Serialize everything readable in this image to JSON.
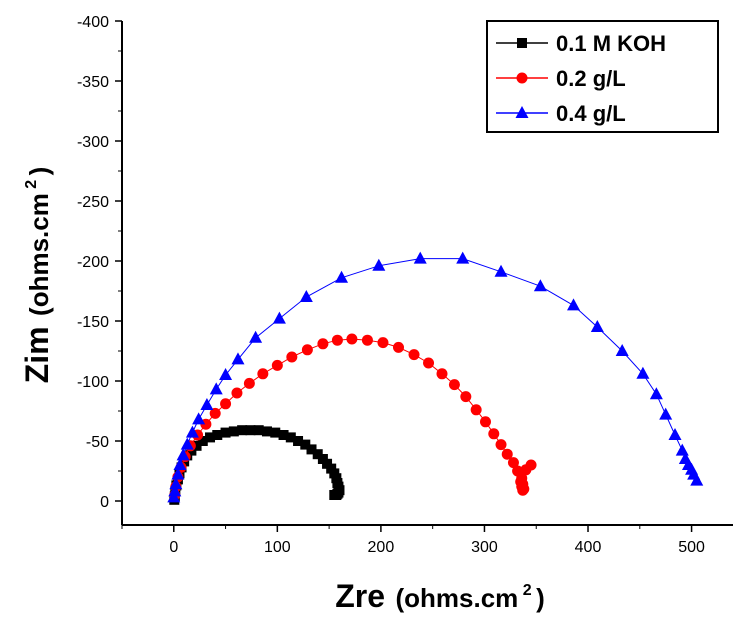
{
  "chart_data": {
    "type": "scatter",
    "xlabel_main": "Zre",
    "xlabel_unit": "(ohms.cm",
    "xlabel_sup": "2",
    "xlabel_close": ")",
    "ylabel_main": "Zim",
    "ylabel_unit": "(ohms.cm",
    "ylabel_sup": "2",
    "ylabel_close": ")",
    "xlim": [
      -50,
      540
    ],
    "ylim": [
      20,
      -400
    ],
    "x_ticks": [
      "0",
      "100",
      "200",
      "300",
      "400",
      "500"
    ],
    "x_tick_values": [
      0,
      100,
      200,
      300,
      400,
      500
    ],
    "y_ticks": [
      "0",
      "-50",
      "-100",
      "-150",
      "-200",
      "-250",
      "-300",
      "-350",
      "-400"
    ],
    "y_tick_values": [
      0,
      -50,
      -100,
      -150,
      -200,
      -250,
      -300,
      -350,
      -400
    ],
    "legend_position": "top-right",
    "series": [
      {
        "name": "0.1 M KOH",
        "color": "#000000",
        "marker": "square",
        "x": [
          0.5,
          1,
          1.5,
          2.5,
          4,
          5.5,
          7.5,
          10,
          13,
          17,
          22,
          28,
          35,
          42,
          50,
          58,
          66,
          74,
          82,
          90,
          98,
          106,
          113,
          120,
          127,
          133,
          139,
          144,
          148,
          152,
          155,
          157,
          158,
          159,
          160,
          159,
          158,
          157,
          155
        ],
        "y": [
          -1,
          -4,
          -8,
          -13,
          -18,
          -23,
          -28,
          -33,
          -38,
          -42,
          -46,
          -50,
          -53,
          -55,
          -57,
          -58,
          -59,
          -59,
          -59,
          -58,
          -57,
          -55,
          -53,
          -50,
          -47,
          -43,
          -39,
          -35,
          -31,
          -27,
          -23,
          -19,
          -15,
          -12,
          -9,
          -7,
          -6,
          -5,
          -5
        ]
      },
      {
        "name": "0.2 g/L",
        "color": "#ff0000",
        "marker": "circle",
        "x": [
          1,
          2,
          4,
          7,
          11,
          16,
          23,
          31,
          40,
          50,
          61,
          73,
          86,
          100,
          114,
          129,
          144,
          158,
          172,
          187,
          202,
          217,
          232,
          246,
          259,
          271,
          282,
          292,
          301,
          309,
          316,
          322,
          328,
          332,
          336,
          337,
          338,
          337,
          336,
          335,
          340,
          345
        ],
        "y": [
          -5,
          -12,
          -20,
          -28,
          -37,
          -46,
          -55,
          -64,
          -73,
          -81,
          -90,
          -98,
          -106,
          -113,
          -120,
          -126,
          -131,
          -134,
          -135,
          -134,
          -132,
          -128,
          -122,
          -115,
          -106,
          -97,
          -87,
          -76,
          -66,
          -56,
          -47,
          -39,
          -32,
          -25,
          -19,
          -14,
          -10,
          -9,
          -12,
          -16,
          -26,
          -30
        ]
      },
      {
        "name": "0.4 g/L",
        "color": "#0000ff",
        "marker": "triangle",
        "x": [
          0,
          1,
          2,
          4,
          6,
          9,
          13,
          18,
          24,
          32,
          41,
          50,
          62,
          79,
          102,
          128,
          162,
          198,
          238,
          279,
          316,
          354,
          386,
          409,
          433,
          453,
          466,
          475,
          484,
          491,
          494,
          497,
          500,
          502,
          505
        ],
        "y": [
          -3,
          -8,
          -14,
          -22,
          -30,
          -38,
          -47,
          -57,
          -68,
          -80,
          -93,
          -105,
          -118,
          -136,
          -152,
          -170,
          -186,
          -196,
          -202,
          -202,
          -191,
          -179,
          -163,
          -145,
          -125,
          -106,
          -89,
          -72,
          -55,
          -42,
          -35,
          -30,
          -26,
          -22,
          -17
        ]
      }
    ]
  }
}
